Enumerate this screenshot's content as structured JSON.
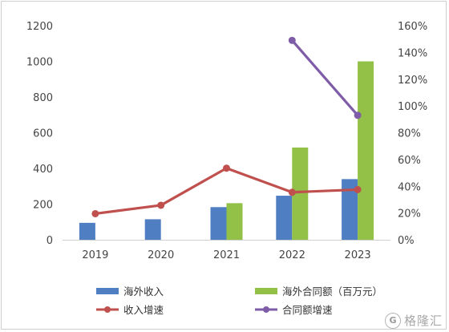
{
  "chart_data": {
    "type": "bar",
    "categories": [
      "2019",
      "2020",
      "2021",
      "2022",
      "2023"
    ],
    "y_left": {
      "lim": [
        0,
        1200
      ],
      "ticks": [
        "0",
        "200",
        "400",
        "600",
        "800",
        "1000",
        "1200"
      ]
    },
    "y_right": {
      "lim": [
        0,
        160
      ],
      "ticks": [
        "0%",
        "20%",
        "40%",
        "60%",
        "80%",
        "100%",
        "120%",
        "140%",
        "160%"
      ]
    },
    "series": [
      {
        "name": "海外收入",
        "kind": "bar",
        "axis": "left",
        "color": "#4f7fc2",
        "values": [
          95,
          115,
          183,
          247,
          340
        ]
      },
      {
        "name": "海外合同额（百万元）",
        "kind": "bar",
        "axis": "left",
        "color": "#93c047",
        "values": [
          null,
          null,
          205,
          517,
          1000
        ]
      },
      {
        "name": "收入增速",
        "kind": "line",
        "axis": "right",
        "color": "#c0504d",
        "values": [
          19.5,
          25.8,
          53.5,
          35.5,
          37.5
        ]
      },
      {
        "name": "合同额增速",
        "kind": "line",
        "axis": "right",
        "color": "#7f5ca8",
        "values": [
          null,
          null,
          null,
          149,
          93
        ]
      }
    ],
    "grid": false,
    "legend_position": "bottom"
  },
  "watermark": {
    "badge": "G",
    "text": "格隆汇"
  }
}
